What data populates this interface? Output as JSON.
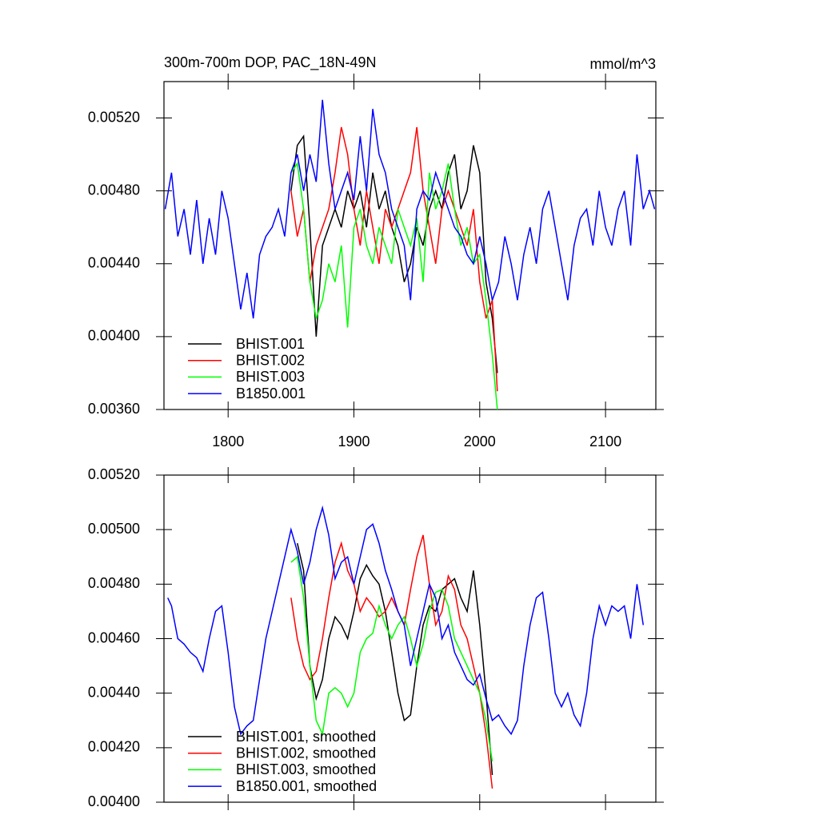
{
  "chart_data": [
    {
      "type": "line",
      "title": "300m-700m DOP, PAC_18N-49N",
      "units": "mmol/m^3",
      "xlim": [
        1749,
        2140
      ],
      "xticks": [
        1800,
        1900,
        2000,
        2100
      ],
      "xtick_labels": true,
      "ylim": [
        0.0036,
        0.0054
      ],
      "yticks": [
        {
          "value": 0.0036,
          "label": "0.00360"
        },
        {
          "value": 0.004,
          "label": "0.00400"
        },
        {
          "value": 0.0044,
          "label": "0.00440"
        },
        {
          "value": 0.0048,
          "label": "0.00480"
        },
        {
          "value": 0.0052,
          "label": "0.00520"
        }
      ],
      "legend": "lower left",
      "series": [
        {
          "name": "BHIST.001",
          "color": "#000000",
          "x": [
            1850,
            1855,
            1860,
            1865,
            1870,
            1875,
            1880,
            1885,
            1890,
            1895,
            1900,
            1905,
            1910,
            1915,
            1920,
            1925,
            1930,
            1935,
            1940,
            1945,
            1950,
            1955,
            1960,
            1965,
            1970,
            1975,
            1980,
            1985,
            1990,
            1995,
            2000,
            2005,
            2010,
            2014
          ],
          "values": [
            0.0048,
            0.00505,
            0.0051,
            0.0046,
            0.004,
            0.0045,
            0.0046,
            0.0047,
            0.0046,
            0.0048,
            0.0047,
            0.0048,
            0.0046,
            0.0049,
            0.0047,
            0.0048,
            0.0046,
            0.0045,
            0.0043,
            0.0044,
            0.0046,
            0.0045,
            0.0047,
            0.0048,
            0.0047,
            0.0049,
            0.005,
            0.0047,
            0.0048,
            0.00505,
            0.0049,
            0.0043,
            0.0041,
            0.0038
          ]
        },
        {
          "name": "BHIST.002",
          "color": "#ff0000",
          "x": [
            1850,
            1855,
            1860,
            1865,
            1870,
            1875,
            1880,
            1885,
            1890,
            1895,
            1900,
            1905,
            1910,
            1915,
            1920,
            1925,
            1930,
            1935,
            1940,
            1945,
            1950,
            1955,
            1960,
            1965,
            1970,
            1975,
            1980,
            1985,
            1990,
            1995,
            2000,
            2005,
            2010,
            2014
          ],
          "values": [
            0.0048,
            0.00455,
            0.0047,
            0.0043,
            0.0045,
            0.0046,
            0.0047,
            0.0049,
            0.00515,
            0.005,
            0.0047,
            0.0045,
            0.0048,
            0.0046,
            0.0044,
            0.0047,
            0.0046,
            0.0047,
            0.0048,
            0.0049,
            0.00515,
            0.0048,
            0.0046,
            0.0044,
            0.0047,
            0.0048,
            0.0047,
            0.0046,
            0.0045,
            0.0047,
            0.0043,
            0.0041,
            0.0042,
            0.0037
          ]
        },
        {
          "name": "BHIST.003",
          "color": "#00ff00",
          "x": [
            1850,
            1855,
            1860,
            1865,
            1870,
            1875,
            1880,
            1885,
            1890,
            1895,
            1900,
            1905,
            1910,
            1915,
            1920,
            1925,
            1930,
            1935,
            1940,
            1945,
            1950,
            1955,
            1960,
            1965,
            1970,
            1975,
            1980,
            1985,
            1990,
            1995,
            2000,
            2005,
            2010,
            2014
          ],
          "values": [
            0.0049,
            0.00495,
            0.0047,
            0.0043,
            0.0041,
            0.0042,
            0.0044,
            0.0043,
            0.0045,
            0.00405,
            0.0046,
            0.0047,
            0.0045,
            0.0044,
            0.0046,
            0.0045,
            0.0044,
            0.0047,
            0.0046,
            0.0045,
            0.00465,
            0.0043,
            0.0049,
            0.0047,
            0.0048,
            0.00495,
            0.0047,
            0.0045,
            0.0046,
            0.0044,
            0.00445,
            0.0042,
            0.0039,
            0.0036
          ]
        },
        {
          "name": "B1850.001",
          "color": "#0000ff",
          "x": [
            1750,
            1755,
            1760,
            1765,
            1770,
            1775,
            1780,
            1785,
            1790,
            1795,
            1800,
            1805,
            1810,
            1815,
            1820,
            1825,
            1830,
            1835,
            1840,
            1845,
            1850,
            1855,
            1860,
            1865,
            1870,
            1875,
            1880,
            1885,
            1890,
            1895,
            1900,
            1905,
            1910,
            1915,
            1920,
            1925,
            1930,
            1935,
            1940,
            1945,
            1950,
            1955,
            1960,
            1965,
            1970,
            1975,
            1980,
            1985,
            1990,
            1995,
            2000,
            2005,
            2010,
            2015,
            2020,
            2025,
            2030,
            2035,
            2040,
            2045,
            2050,
            2055,
            2060,
            2065,
            2070,
            2075,
            2080,
            2085,
            2090,
            2095,
            2100,
            2105,
            2110,
            2115,
            2120,
            2125,
            2130,
            2135,
            2139
          ],
          "values": [
            0.0047,
            0.0049,
            0.00455,
            0.0047,
            0.00445,
            0.00475,
            0.0044,
            0.00465,
            0.00445,
            0.0048,
            0.00465,
            0.0044,
            0.00415,
            0.00435,
            0.0041,
            0.00445,
            0.00455,
            0.0046,
            0.0047,
            0.00455,
            0.0049,
            0.005,
            0.0048,
            0.005,
            0.00485,
            0.0053,
            0.00495,
            0.0047,
            0.0048,
            0.0049,
            0.00475,
            0.0051,
            0.0048,
            0.00525,
            0.005,
            0.0049,
            0.0047,
            0.0046,
            0.0045,
            0.0042,
            0.0047,
            0.0048,
            0.00475,
            0.0049,
            0.0048,
            0.0047,
            0.0046,
            0.00455,
            0.00445,
            0.0044,
            0.00455,
            0.0044,
            0.0042,
            0.0043,
            0.00455,
            0.0044,
            0.0042,
            0.00445,
            0.0046,
            0.0044,
            0.0047,
            0.0048,
            0.0046,
            0.0044,
            0.0042,
            0.0045,
            0.00465,
            0.0047,
            0.0045,
            0.0048,
            0.0046,
            0.0045,
            0.0047,
            0.0048,
            0.0045,
            0.005,
            0.0047,
            0.0048,
            0.0047
          ]
        }
      ]
    },
    {
      "type": "line",
      "xlim": [
        1749,
        2140
      ],
      "xticks": [
        1800,
        1900,
        2000,
        2100
      ],
      "xtick_labels": false,
      "ylim": [
        0.004,
        0.0052
      ],
      "yticks": [
        {
          "value": 0.004,
          "label": "0.00400"
        },
        {
          "value": 0.0042,
          "label": "0.00420"
        },
        {
          "value": 0.0044,
          "label": "0.00440"
        },
        {
          "value": 0.0046,
          "label": "0.00460"
        },
        {
          "value": 0.0048,
          "label": "0.00480"
        },
        {
          "value": 0.005,
          "label": "0.00500"
        },
        {
          "value": 0.0052,
          "label": "0.00520"
        }
      ],
      "legend": "lower left",
      "series": [
        {
          "name": "BHIST.001, smoothed",
          "color": "#000000",
          "x": [
            1855,
            1860,
            1865,
            1870,
            1875,
            1880,
            1885,
            1890,
            1895,
            1900,
            1905,
            1910,
            1915,
            1920,
            1925,
            1930,
            1935,
            1940,
            1945,
            1950,
            1955,
            1960,
            1965,
            1970,
            1975,
            1980,
            1985,
            1990,
            1995,
            2000,
            2005,
            2010
          ],
          "values": [
            0.00495,
            0.00485,
            0.0045,
            0.00438,
            0.00445,
            0.0046,
            0.00468,
            0.00465,
            0.0046,
            0.0047,
            0.00482,
            0.00487,
            0.00483,
            0.0048,
            0.0047,
            0.00455,
            0.0044,
            0.0043,
            0.00432,
            0.0045,
            0.00465,
            0.00472,
            0.0047,
            0.00478,
            0.0048,
            0.00482,
            0.00475,
            0.0047,
            0.00485,
            0.00465,
            0.0044,
            0.0041
          ]
        },
        {
          "name": "BHIST.002, smoothed",
          "color": "#ff0000",
          "x": [
            1850,
            1855,
            1860,
            1865,
            1870,
            1875,
            1880,
            1885,
            1890,
            1895,
            1900,
            1905,
            1910,
            1915,
            1920,
            1925,
            1930,
            1935,
            1940,
            1945,
            1950,
            1955,
            1960,
            1965,
            1970,
            1975,
            1980,
            1985,
            1990,
            1995,
            2000,
            2005,
            2010
          ],
          "values": [
            0.00475,
            0.0046,
            0.0045,
            0.00445,
            0.00448,
            0.0046,
            0.00475,
            0.00488,
            0.00495,
            0.00485,
            0.0048,
            0.0047,
            0.00475,
            0.00472,
            0.00468,
            0.0047,
            0.00475,
            0.0047,
            0.00465,
            0.00478,
            0.0049,
            0.00498,
            0.0048,
            0.00465,
            0.0047,
            0.00483,
            0.00478,
            0.00465,
            0.0046,
            0.0045,
            0.0044,
            0.00425,
            0.00405
          ]
        },
        {
          "name": "BHIST.003, smoothed",
          "color": "#00ff00",
          "x": [
            1850,
            1855,
            1860,
            1865,
            1870,
            1875,
            1880,
            1885,
            1890,
            1895,
            1900,
            1905,
            1910,
            1915,
            1920,
            1925,
            1930,
            1935,
            1940,
            1945,
            1950,
            1955,
            1960,
            1965,
            1970,
            1975,
            1980,
            1985,
            1990,
            1995,
            2000,
            2005,
            2010
          ],
          "values": [
            0.00488,
            0.0049,
            0.00475,
            0.0045,
            0.0043,
            0.00425,
            0.0044,
            0.00442,
            0.0044,
            0.00435,
            0.0044,
            0.00455,
            0.0046,
            0.00462,
            0.00472,
            0.00465,
            0.0046,
            0.00465,
            0.00468,
            0.0046,
            0.0045,
            0.00458,
            0.0047,
            0.00477,
            0.00478,
            0.00472,
            0.0046,
            0.00455,
            0.0045,
            0.00445,
            0.0044,
            0.0043,
            0.00415
          ]
        },
        {
          "name": "B1850.001, smoothed",
          "color": "#0000ff",
          "x": [
            1752,
            1755,
            1760,
            1765,
            1770,
            1775,
            1780,
            1785,
            1790,
            1795,
            1800,
            1805,
            1810,
            1815,
            1820,
            1825,
            1830,
            1835,
            1840,
            1845,
            1850,
            1855,
            1860,
            1865,
            1870,
            1875,
            1880,
            1885,
            1890,
            1895,
            1900,
            1905,
            1910,
            1915,
            1920,
            1925,
            1930,
            1935,
            1940,
            1945,
            1950,
            1955,
            1960,
            1965,
            1970,
            1975,
            1980,
            1985,
            1990,
            1995,
            2000,
            2005,
            2010,
            2015,
            2020,
            2025,
            2030,
            2035,
            2040,
            2045,
            2050,
            2055,
            2060,
            2065,
            2070,
            2075,
            2080,
            2085,
            2090,
            2095,
            2100,
            2105,
            2110,
            2115,
            2120,
            2125,
            2130
          ],
          "values": [
            0.00475,
            0.00472,
            0.0046,
            0.00458,
            0.00455,
            0.00453,
            0.00448,
            0.0046,
            0.0047,
            0.00472,
            0.00455,
            0.00435,
            0.00425,
            0.00428,
            0.0043,
            0.00445,
            0.0046,
            0.0047,
            0.0048,
            0.0049,
            0.005,
            0.00492,
            0.0048,
            0.00488,
            0.005,
            0.00508,
            0.00498,
            0.00482,
            0.00488,
            0.0049,
            0.0048,
            0.0049,
            0.005,
            0.00502,
            0.00495,
            0.00485,
            0.00478,
            0.0047,
            0.00465,
            0.0045,
            0.0046,
            0.0047,
            0.0048,
            0.00475,
            0.0046,
            0.00465,
            0.00455,
            0.0045,
            0.00445,
            0.00443,
            0.00447,
            0.00438,
            0.0043,
            0.00432,
            0.00428,
            0.00425,
            0.0043,
            0.0045,
            0.00465,
            0.00475,
            0.00477,
            0.0046,
            0.0044,
            0.00435,
            0.0044,
            0.00432,
            0.00428,
            0.0044,
            0.0046,
            0.00472,
            0.00465,
            0.00472,
            0.0047,
            0.00472,
            0.0046,
            0.0048,
            0.00465
          ]
        }
      ]
    }
  ]
}
